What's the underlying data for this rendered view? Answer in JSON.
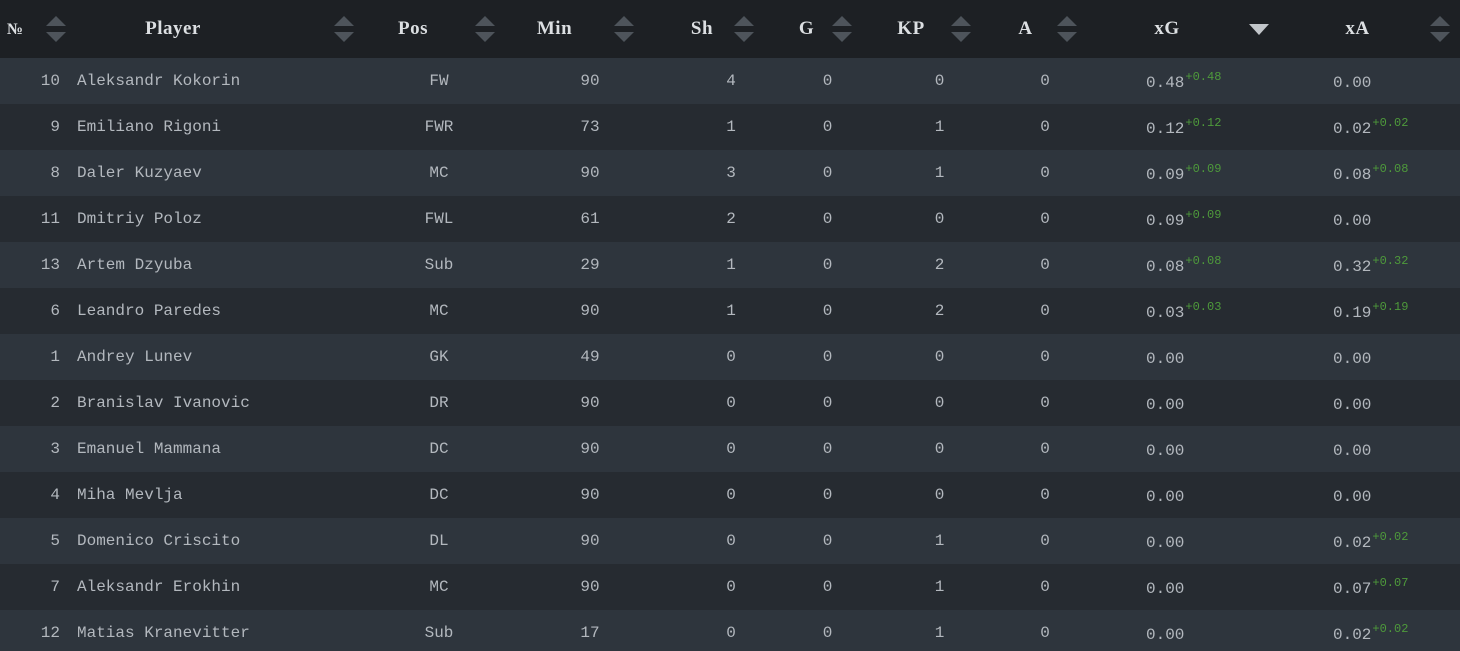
{
  "columns": {
    "num": "№",
    "player": "Player",
    "pos": "Pos",
    "min": "Min",
    "sh": "Sh",
    "g": "G",
    "kp": "KP",
    "a": "A",
    "xg": "xG",
    "xa": "xA"
  },
  "sort": {
    "column": "xG",
    "direction": "desc"
  },
  "colors": {
    "header_bg": "#1d2024",
    "row_odd": "#2e353d",
    "row_even": "#262b31",
    "positive_diff": "#4e9a3b"
  },
  "rows": [
    {
      "num": "10",
      "player": "Aleksandr Kokorin",
      "pos": "FW",
      "min": "90",
      "sh": "4",
      "g": "0",
      "kp": "0",
      "a": "0",
      "xg": "0.48",
      "xg_diff": "+0.48",
      "xa": "0.00",
      "xa_diff": ""
    },
    {
      "num": "9",
      "player": "Emiliano Rigoni",
      "pos": "FWR",
      "min": "73",
      "sh": "1",
      "g": "0",
      "kp": "1",
      "a": "0",
      "xg": "0.12",
      "xg_diff": "+0.12",
      "xa": "0.02",
      "xa_diff": "+0.02"
    },
    {
      "num": "8",
      "player": "Daler Kuzyaev",
      "pos": "MC",
      "min": "90",
      "sh": "3",
      "g": "0",
      "kp": "1",
      "a": "0",
      "xg": "0.09",
      "xg_diff": "+0.09",
      "xa": "0.08",
      "xa_diff": "+0.08"
    },
    {
      "num": "11",
      "player": "Dmitriy Poloz",
      "pos": "FWL",
      "min": "61",
      "sh": "2",
      "g": "0",
      "kp": "0",
      "a": "0",
      "xg": "0.09",
      "xg_diff": "+0.09",
      "xa": "0.00",
      "xa_diff": ""
    },
    {
      "num": "13",
      "player": "Artem Dzyuba",
      "pos": "Sub",
      "min": "29",
      "sh": "1",
      "g": "0",
      "kp": "2",
      "a": "0",
      "xg": "0.08",
      "xg_diff": "+0.08",
      "xa": "0.32",
      "xa_diff": "+0.32"
    },
    {
      "num": "6",
      "player": "Leandro Paredes",
      "pos": "MC",
      "min": "90",
      "sh": "1",
      "g": "0",
      "kp": "2",
      "a": "0",
      "xg": "0.03",
      "xg_diff": "+0.03",
      "xa": "0.19",
      "xa_diff": "+0.19"
    },
    {
      "num": "1",
      "player": "Andrey Lunev",
      "pos": "GK",
      "min": "49",
      "sh": "0",
      "g": "0",
      "kp": "0",
      "a": "0",
      "xg": "0.00",
      "xg_diff": "",
      "xa": "0.00",
      "xa_diff": ""
    },
    {
      "num": "2",
      "player": "Branislav Ivanovic",
      "pos": "DR",
      "min": "90",
      "sh": "0",
      "g": "0",
      "kp": "0",
      "a": "0",
      "xg": "0.00",
      "xg_diff": "",
      "xa": "0.00",
      "xa_diff": ""
    },
    {
      "num": "3",
      "player": "Emanuel Mammana",
      "pos": "DC",
      "min": "90",
      "sh": "0",
      "g": "0",
      "kp": "0",
      "a": "0",
      "xg": "0.00",
      "xg_diff": "",
      "xa": "0.00",
      "xa_diff": ""
    },
    {
      "num": "4",
      "player": "Miha Mevlja",
      "pos": "DC",
      "min": "90",
      "sh": "0",
      "g": "0",
      "kp": "0",
      "a": "0",
      "xg": "0.00",
      "xg_diff": "",
      "xa": "0.00",
      "xa_diff": ""
    },
    {
      "num": "5",
      "player": "Domenico Criscito",
      "pos": "DL",
      "min": "90",
      "sh": "0",
      "g": "0",
      "kp": "1",
      "a": "0",
      "xg": "0.00",
      "xg_diff": "",
      "xa": "0.02",
      "xa_diff": "+0.02"
    },
    {
      "num": "7",
      "player": "Aleksandr Erokhin",
      "pos": "MC",
      "min": "90",
      "sh": "0",
      "g": "0",
      "kp": "1",
      "a": "0",
      "xg": "0.00",
      "xg_diff": "",
      "xa": "0.07",
      "xa_diff": "+0.07"
    },
    {
      "num": "12",
      "player": "Matias Kranevitter",
      "pos": "Sub",
      "min": "17",
      "sh": "0",
      "g": "0",
      "kp": "1",
      "a": "0",
      "xg": "0.00",
      "xg_diff": "",
      "xa": "0.02",
      "xa_diff": "+0.02"
    }
  ]
}
